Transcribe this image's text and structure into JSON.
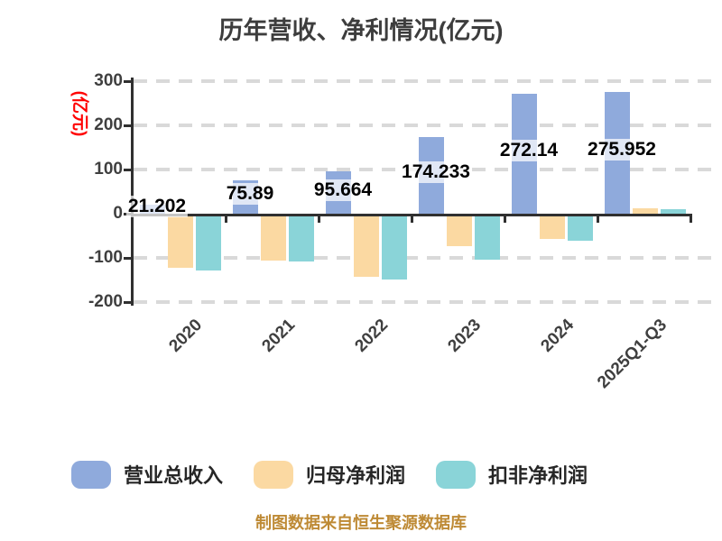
{
  "title": "历年营收、净利情况(亿元)",
  "y_axis_unit_label": "(亿元)",
  "footer_note": "制图数据来自恒生聚源数据库",
  "colors": {
    "revenue_blue": "#8FAADC",
    "profit_orange": "#FBD9A2",
    "nongaap_teal": "#8AD4D8",
    "axis": "#303030",
    "grid": "#D9D9D9",
    "tick_label": "#3F3F3F",
    "title_text": "#3D3D3D",
    "unit_label_red": "#FF0000",
    "footer_orange": "#BE8A35",
    "bar_label_text": "#000000"
  },
  "chart_data": {
    "type": "bar",
    "title": "历年营收、净利情况(亿元)",
    "categories": [
      "2020",
      "2021",
      "2022",
      "2023",
      "2024",
      "2025Q1-Q3"
    ],
    "series": [
      {
        "name": "营业总收入",
        "color": "#8FAADC",
        "values": [
          21.202,
          75.89,
          95.664,
          174.233,
          272.14,
          275.952
        ],
        "labels": [
          "21.202",
          "75.89",
          "95.664",
          "174.233",
          "272.14",
          "275.952"
        ]
      },
      {
        "name": "归母净利润",
        "color": "#FBD9A2",
        "values": [
          -117,
          -100,
          -137,
          -68,
          -50,
          13
        ]
      },
      {
        "name": "扣非净利润",
        "color": "#8AD4D8",
        "values": [
          -122,
          -103,
          -142,
          -98,
          -56,
          10
        ]
      }
    ],
    "ylabel": "(亿元)",
    "ylim": [
      -200,
      300
    ],
    "yticks": [
      300,
      200,
      100,
      0,
      -100,
      -200
    ],
    "ytick_labels": [
      "300",
      "200",
      "100",
      "0",
      "-100",
      "-200"
    ],
    "grid": "horizontal dashed",
    "legend_position": "bottom"
  },
  "legend": {
    "items": [
      {
        "label": "营业总收入",
        "color": "#8FAADC"
      },
      {
        "label": "归母净利润",
        "color": "#FBD9A2"
      },
      {
        "label": "扣非净利润",
        "color": "#8AD4D8"
      }
    ]
  }
}
